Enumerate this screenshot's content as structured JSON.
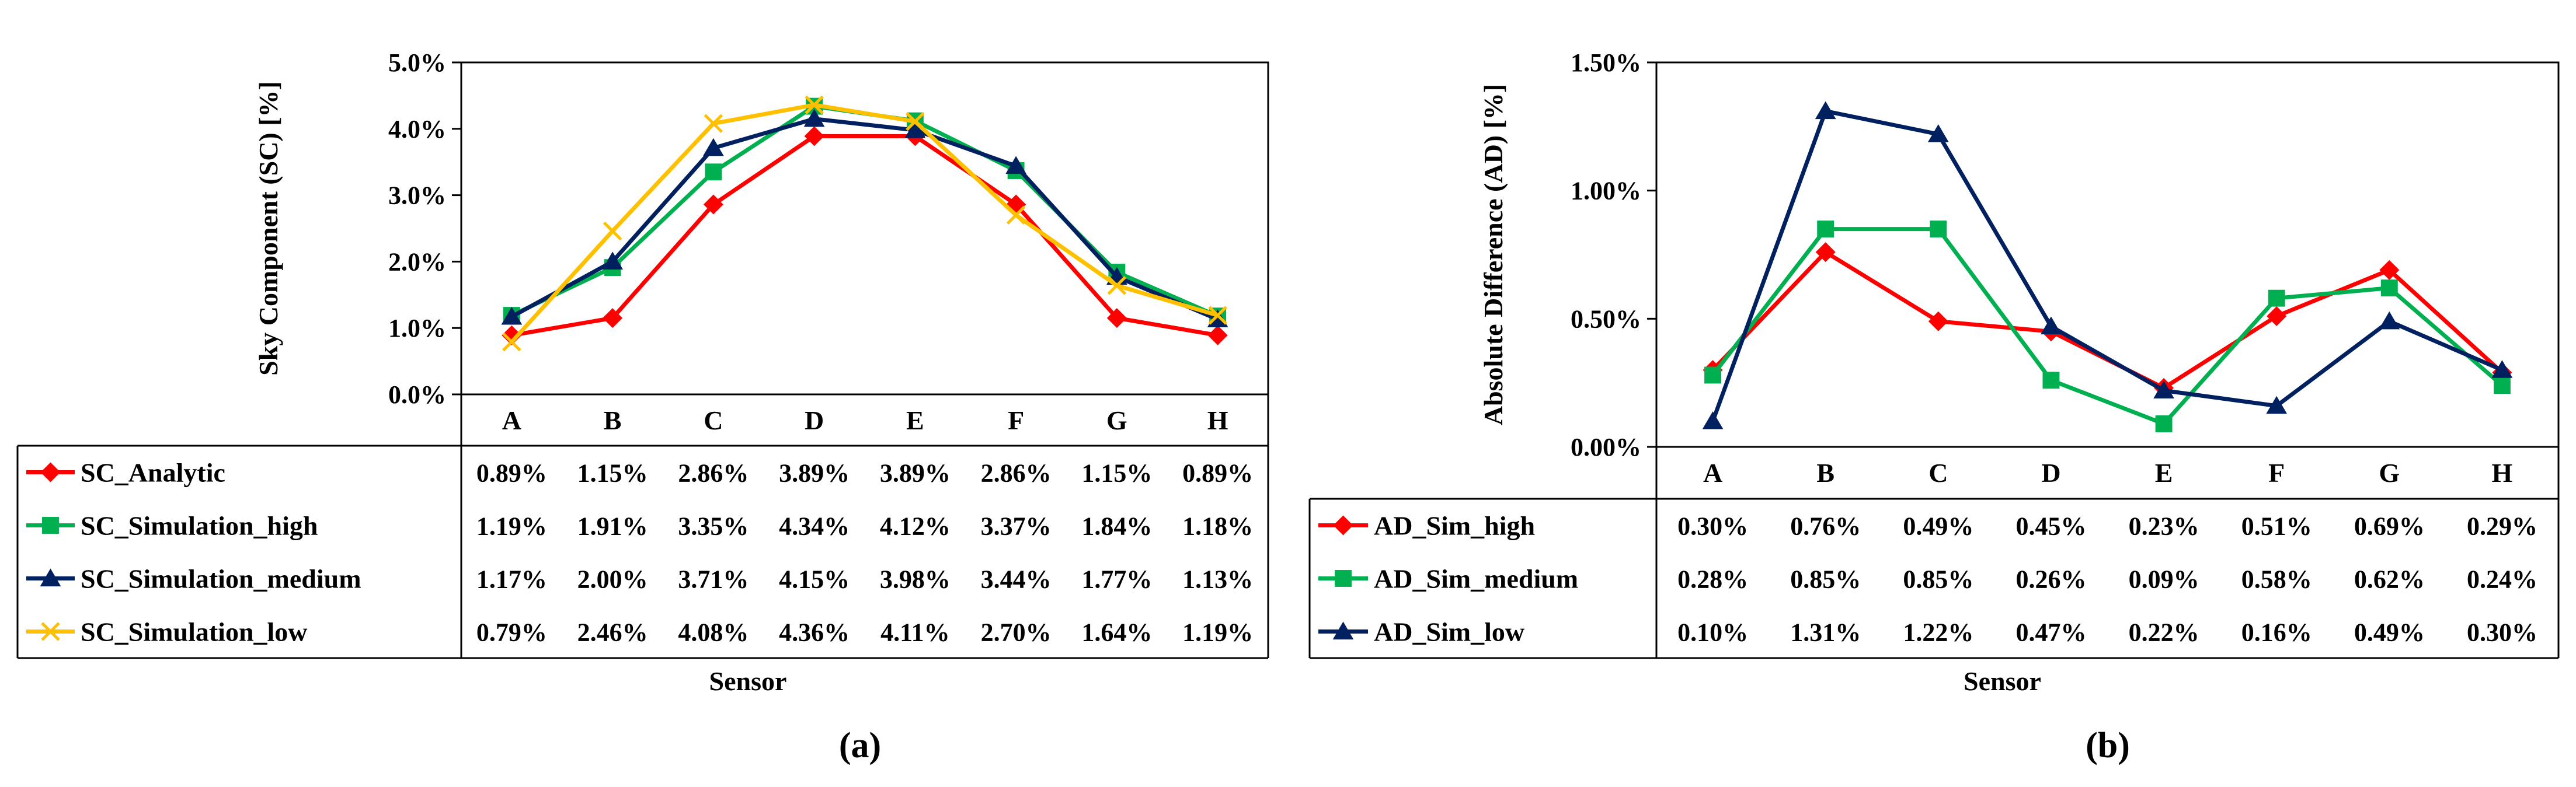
{
  "chart_data": [
    {
      "type": "line",
      "panel_label": "(a)",
      "ylabel": "Sky Component (SC) [%]",
      "xlabel": "Sensor",
      "ylim": [
        0,
        5
      ],
      "yticks": [
        "0.0%",
        "1.0%",
        "2.0%",
        "3.0%",
        "4.0%",
        "5.0%"
      ],
      "categories": [
        "A",
        "B",
        "C",
        "D",
        "E",
        "F",
        "G",
        "H"
      ],
      "grid": false,
      "legend": "data-table-left",
      "series": [
        {
          "name": "SC_Analytic",
          "color": "#ff0000",
          "marker": "diamond",
          "values": [
            0.89,
            1.15,
            2.86,
            3.89,
            3.89,
            2.86,
            1.15,
            0.89
          ],
          "labels": [
            "0.89%",
            "1.15%",
            "2.86%",
            "3.89%",
            "3.89%",
            "2.86%",
            "1.15%",
            "0.89%"
          ]
        },
        {
          "name": "SC_Simulation_high",
          "color": "#00b050",
          "marker": "square",
          "values": [
            1.19,
            1.91,
            3.35,
            4.34,
            4.12,
            3.37,
            1.84,
            1.18
          ],
          "labels": [
            "1.19%",
            "1.91%",
            "3.35%",
            "4.34%",
            "4.12%",
            "3.37%",
            "1.84%",
            "1.18%"
          ]
        },
        {
          "name": "SC_Simulation_medium",
          "color": "#002060",
          "marker": "triangle",
          "values": [
            1.17,
            2.0,
            3.71,
            4.15,
            3.98,
            3.44,
            1.77,
            1.13
          ],
          "labels": [
            "1.17%",
            "2.00%",
            "3.71%",
            "4.15%",
            "3.98%",
            "3.44%",
            "1.77%",
            "1.13%"
          ]
        },
        {
          "name": "SC_Simulation_low",
          "color": "#ffc000",
          "marker": "x",
          "values": [
            0.79,
            2.46,
            4.08,
            4.36,
            4.11,
            2.7,
            1.64,
            1.19
          ],
          "labels": [
            "0.79%",
            "2.46%",
            "4.08%",
            "4.36%",
            "4.11%",
            "2.70%",
            "1.64%",
            "1.19%"
          ]
        }
      ]
    },
    {
      "type": "line",
      "panel_label": "(b)",
      "ylabel": "Absolute Difference (AD) [%]",
      "xlabel": "Sensor",
      "ylim": [
        0,
        1.5
      ],
      "yticks": [
        "0.00%",
        "0.50%",
        "1.00%",
        "1.50%"
      ],
      "categories": [
        "A",
        "B",
        "C",
        "D",
        "E",
        "F",
        "G",
        "H"
      ],
      "grid": false,
      "legend": "data-table-left",
      "series": [
        {
          "name": "AD_Sim_high",
          "color": "#ff0000",
          "marker": "diamond",
          "values": [
            0.3,
            0.76,
            0.49,
            0.45,
            0.23,
            0.51,
            0.69,
            0.29
          ],
          "labels": [
            "0.30%",
            "0.76%",
            "0.49%",
            "0.45%",
            "0.23%",
            "0.51%",
            "0.69%",
            "0.29%"
          ]
        },
        {
          "name": "AD_Sim_medium",
          "color": "#00b050",
          "marker": "square",
          "values": [
            0.28,
            0.85,
            0.85,
            0.26,
            0.09,
            0.58,
            0.62,
            0.24
          ],
          "labels": [
            "0.28%",
            "0.85%",
            "0.85%",
            "0.26%",
            "0.09%",
            "0.58%",
            "0.62%",
            "0.24%"
          ]
        },
        {
          "name": "AD_Sim_low",
          "color": "#002060",
          "marker": "triangle",
          "values": [
            0.1,
            1.31,
            1.22,
            0.47,
            0.22,
            0.16,
            0.49,
            0.3
          ],
          "labels": [
            "0.10%",
            "1.31%",
            "1.22%",
            "0.47%",
            "0.22%",
            "0.16%",
            "0.49%",
            "0.30%"
          ]
        }
      ]
    }
  ]
}
